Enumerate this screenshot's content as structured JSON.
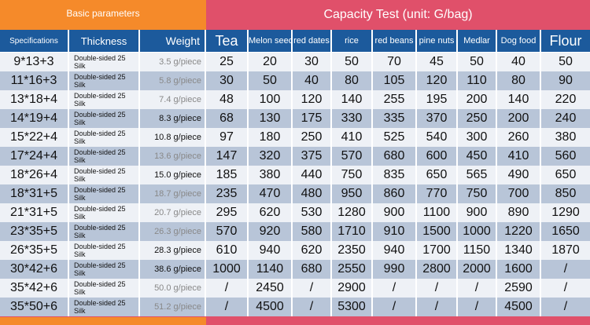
{
  "header": {
    "left_title": "Basic parameters",
    "right_title": "Capacity Test (unit: G/bag)"
  },
  "columns": {
    "specifications": "Specifications",
    "thickness": "Thickness",
    "weight": "Weight",
    "tea": "Tea",
    "melon_seeds": "Melon seeds",
    "red_dates": "red dates",
    "rice": "rice",
    "red_beans": "red beans",
    "pine_nuts": "pine nuts",
    "medlar": "Medlar",
    "dog_food": "Dog food",
    "flour": "Flour"
  },
  "rows": [
    {
      "spec": "9*13+3",
      "thickness": "Double-sided 25 Silk",
      "weight": "3.5 g/piece",
      "tea": "25",
      "melon": "20",
      "dates": "30",
      "rice": "50",
      "beans": "70",
      "pine": "45",
      "medlar": "50",
      "dog": "40",
      "flour": "50"
    },
    {
      "spec": "11*16+3",
      "thickness": "Double-sided 25 Silk",
      "weight": "5.8 g/piece",
      "tea": "30",
      "melon": "50",
      "dates": "40",
      "rice": "80",
      "beans": "105",
      "pine": "120",
      "medlar": "110",
      "dog": "80",
      "flour": "90"
    },
    {
      "spec": "13*18+4",
      "thickness": "Double-sided 25 Silk",
      "weight": "7.4 g/piece",
      "tea": "48",
      "melon": "100",
      "dates": "120",
      "rice": "140",
      "beans": "255",
      "pine": "195",
      "medlar": "200",
      "dog": "140",
      "flour": "220"
    },
    {
      "spec": "14*19+4",
      "thickness": "Double-sided 25 Silk",
      "weight": "8.3 g/piece",
      "tea": "68",
      "melon": "130",
      "dates": "175",
      "rice": "330",
      "beans": "335",
      "pine": "370",
      "medlar": "250",
      "dog": "200",
      "flour": "240"
    },
    {
      "spec": "15*22+4",
      "thickness": "Double-sided 25 Silk",
      "weight": "10.8 g/piece",
      "tea": "97",
      "melon": "180",
      "dates": "250",
      "rice": "410",
      "beans": "525",
      "pine": "540",
      "medlar": "300",
      "dog": "260",
      "flour": "380"
    },
    {
      "spec": "17*24+4",
      "thickness": "Double-sided 25 Silk",
      "weight": "13.6 g/piece",
      "tea": "147",
      "melon": "320",
      "dates": "375",
      "rice": "570",
      "beans": "680",
      "pine": "600",
      "medlar": "450",
      "dog": "410",
      "flour": "560"
    },
    {
      "spec": "18*26+4",
      "thickness": "Double-sided 25 Silk",
      "weight": "15.0 g/piece",
      "tea": "185",
      "melon": "380",
      "dates": "440",
      "rice": "750",
      "beans": "835",
      "pine": "650",
      "medlar": "565",
      "dog": "490",
      "flour": "650"
    },
    {
      "spec": "18*31+5",
      "thickness": "Double-sided 25 Silk",
      "weight": "18.7 g/piece",
      "tea": "235",
      "melon": "470",
      "dates": "480",
      "rice": "950",
      "beans": "860",
      "pine": "770",
      "medlar": "750",
      "dog": "700",
      "flour": "850"
    },
    {
      "spec": "21*31+5",
      "thickness": "Double-sided 25 Silk",
      "weight": "20.7 g/piece",
      "tea": "295",
      "melon": "620",
      "dates": "530",
      "rice": "1280",
      "beans": "900",
      "pine": "1100",
      "medlar": "900",
      "dog": "890",
      "flour": "1290"
    },
    {
      "spec": "23*35+5",
      "thickness": "Double-sided 25 Silk",
      "weight": "26.3 g/piece",
      "tea": "570",
      "melon": "920",
      "dates": "580",
      "rice": "1710",
      "beans": "910",
      "pine": "1500",
      "medlar": "1000",
      "dog": "1220",
      "flour": "1650"
    },
    {
      "spec": "26*35+5",
      "thickness": "Double-sided 25 Silk",
      "weight": "28.3 g/piece",
      "tea": "610",
      "melon": "940",
      "dates": "620",
      "rice": "2350",
      "beans": "940",
      "pine": "1700",
      "medlar": "1150",
      "dog": "1340",
      "flour": "1870"
    },
    {
      "spec": "30*42+6",
      "thickness": "Double-sided 25 Silk",
      "weight": "38.6 g/piece",
      "tea": "1000",
      "melon": "1140",
      "dates": "680",
      "rice": "2550",
      "beans": "990",
      "pine": "2800",
      "medlar": "2000",
      "dog": "1600",
      "flour": "/"
    },
    {
      "spec": "35*42+6",
      "thickness": "Double-sided 25 Silk",
      "weight": "50.0 g/piece",
      "tea": "/",
      "melon": "2450",
      "dates": "/",
      "rice": "2900",
      "beans": "/",
      "pine": "/",
      "medlar": "/",
      "dog": "2590",
      "flour": "/"
    },
    {
      "spec": "35*50+6",
      "thickness": "Double-sided 25 Silk",
      "weight": "51.2 g/piece",
      "tea": "/",
      "melon": "4500",
      "dates": "/",
      "rice": "5300",
      "beans": "/",
      "pine": "/",
      "medlar": "/",
      "dog": "4500",
      "flour": "/"
    }
  ],
  "colors": {
    "orange": "#f58a2a",
    "red": "#e0506a",
    "header_blue": "#1c5a9c",
    "row_light": "#eef1f6",
    "row_dark": "#b8c5d8"
  }
}
